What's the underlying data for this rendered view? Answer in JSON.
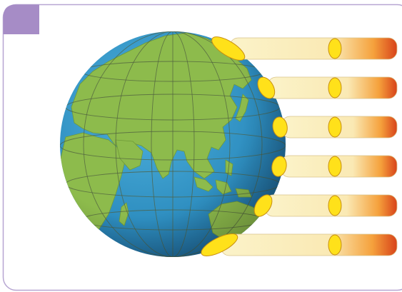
{
  "figure": {
    "subject": "sunlight-angle-on-globe",
    "beam_count": 6,
    "colors": {
      "frame_border": "#b7a6d2",
      "tab": "#a68cc6",
      "ocean": "#2e8ec0",
      "ocean_shadow": "#1b5f8f",
      "land": "#8dbb4c",
      "grid": "#5a6a48",
      "beam_light": "#fbf3c9",
      "beam_orange": "#f07a1c",
      "beam_red": "#d8431a",
      "sun_spot": "#ffe11a",
      "sun_spot_edge": "#c88f10"
    }
  }
}
